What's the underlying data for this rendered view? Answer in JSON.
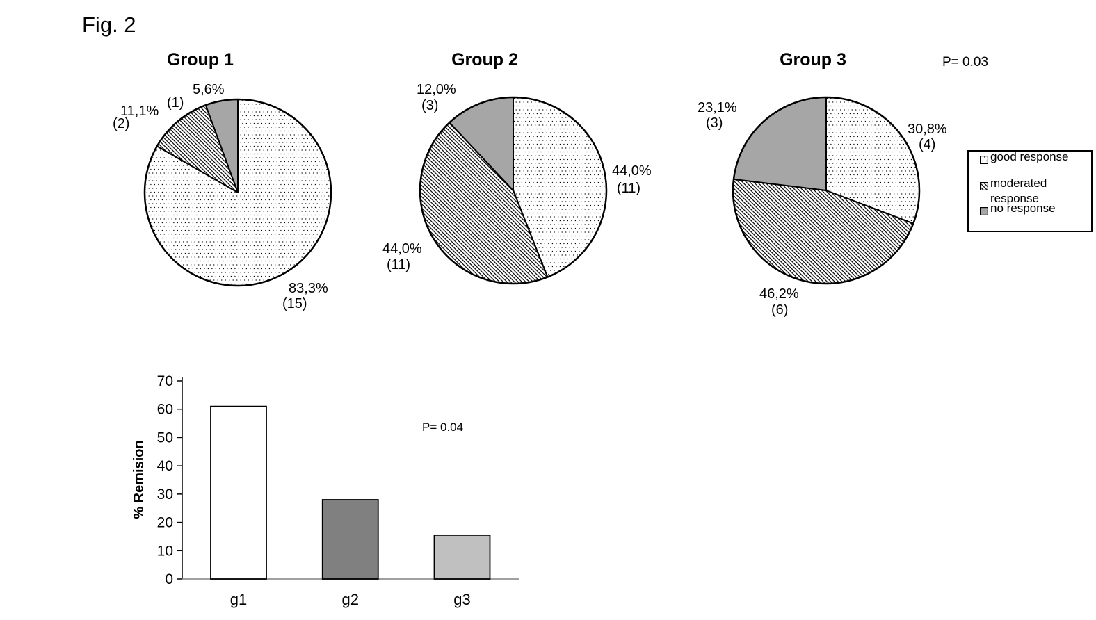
{
  "figure_label": "Fig. 2",
  "colors": {
    "no_response_gray": "#a6a6a6",
    "bar_g1_fill": "#ffffff",
    "bar_g2_fill": "#808080",
    "bar_g3_fill": "#c0c0c0",
    "x_axis_gray": "#808080",
    "pattern_ink": "#000000"
  },
  "legend": {
    "items": [
      {
        "label": "good response",
        "pattern": "dots"
      },
      {
        "label": "moderated response",
        "pattern": "hatch"
      },
      {
        "label": "no response",
        "pattern": "gray"
      }
    ]
  },
  "chart_data": [
    {
      "type": "pie",
      "title": "Group 1",
      "slices": [
        {
          "label": "good response",
          "value": 83.3,
          "pct": "83,3%",
          "count": "(15)",
          "pattern": "dots"
        },
        {
          "label": "moderated response",
          "value": 11.1,
          "pct": "11,1%",
          "count": "(2)",
          "pattern": "hatch"
        },
        {
          "label": "no response",
          "value": 5.6,
          "pct": "5,6%",
          "count": "(1)",
          "pattern": "gray"
        }
      ]
    },
    {
      "type": "pie",
      "title": "Group 2",
      "slices": [
        {
          "label": "good response",
          "value": 44.0,
          "pct": "44,0%",
          "count": "(11)",
          "pattern": "dots"
        },
        {
          "label": "moderated response",
          "value": 44.0,
          "pct": "44,0%",
          "count": "(11)",
          "pattern": "hatch"
        },
        {
          "label": "no response",
          "value": 12.0,
          "pct": "12,0%",
          "count": "(3)",
          "pattern": "gray"
        }
      ]
    },
    {
      "type": "pie",
      "title": "Group 3",
      "annotation": "P= 0.03",
      "slices": [
        {
          "label": "good response",
          "value": 30.8,
          "pct": "30,8%",
          "count": "(4)",
          "pattern": "dots"
        },
        {
          "label": "moderated response",
          "value": 46.2,
          "pct": "46,2%",
          "count": "(6)",
          "pattern": "hatch"
        },
        {
          "label": "no response",
          "value": 23.1,
          "pct": "23,1%",
          "count": "(3)",
          "pattern": "gray"
        }
      ]
    },
    {
      "type": "bar",
      "annotation": "P= 0.04",
      "ylabel": "% Remision",
      "ylim": [
        0,
        70
      ],
      "yticks": [
        0,
        10,
        20,
        30,
        40,
        50,
        60,
        70
      ],
      "categories": [
        "g1",
        "g2",
        "g3"
      ],
      "values": [
        61,
        28,
        15.5
      ],
      "bar_colors": [
        "#ffffff",
        "#808080",
        "#c0c0c0"
      ],
      "legend_position": "none",
      "grid": false
    }
  ]
}
